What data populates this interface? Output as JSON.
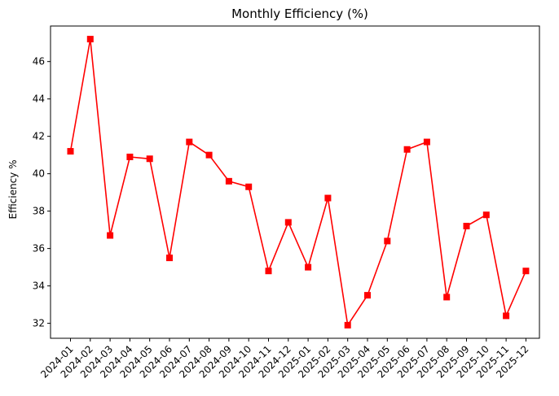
{
  "chart_data": {
    "type": "line",
    "title": "Monthly Efficiency (%)",
    "xlabel": "",
    "ylabel": "Efficiency %",
    "categories": [
      "2024-01",
      "2024-02",
      "2024-03",
      "2024-04",
      "2024-05",
      "2024-06",
      "2024-07",
      "2024-08",
      "2024-09",
      "2024-10",
      "2024-11",
      "2024-12",
      "2025-01",
      "2025-02",
      "2025-03",
      "2025-04",
      "2025-05",
      "2025-06",
      "2025-07",
      "2025-08",
      "2025-09",
      "2025-10",
      "2025-11",
      "2025-12"
    ],
    "series": [
      {
        "values": [
          41.2,
          47.2,
          36.7,
          40.9,
          40.8,
          35.5,
          41.7,
          41.0,
          39.6,
          39.3,
          34.8,
          37.4,
          35.0,
          38.7,
          31.9,
          33.5,
          36.4,
          41.3,
          41.7,
          33.4,
          37.2,
          37.8,
          32.4,
          34.8
        ],
        "color": "#ff0000",
        "marker": "square"
      }
    ],
    "yticks": [
      32,
      34,
      36,
      38,
      40,
      42,
      44,
      46
    ],
    "ylim": [
      31.2,
      47.9
    ],
    "grid": false,
    "legend": "none"
  }
}
